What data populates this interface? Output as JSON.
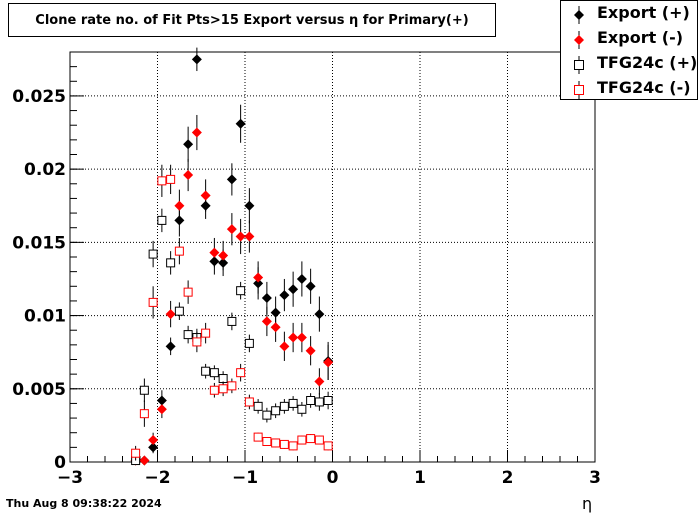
{
  "title": "Clone rate no. of Fit Pts>15 Export versus η for Primary(+)",
  "footer": "Thu Aug  8 09:38:22 2024",
  "chart_data": {
    "type": "scatter",
    "title": "Clone rate no. of Fit Pts>15 Export versus η for Primary(+)",
    "xlabel": "η",
    "ylabel": "",
    "xlim": [
      -3,
      3
    ],
    "ylim": [
      0,
      0.028
    ],
    "grid": true,
    "legend_position": "top-right",
    "x_ticks": [
      "−3",
      "−2",
      "−1",
      "0",
      "1",
      "2",
      "3"
    ],
    "y_ticks": [
      "0",
      "0.005",
      "0.01",
      "0.015",
      "0.02",
      "0.025"
    ],
    "x_tick_values": [
      -3,
      -2,
      -1,
      0,
      1,
      2,
      3
    ],
    "y_tick_values": [
      0,
      0.005,
      0.01,
      0.015,
      0.02,
      0.025
    ],
    "series": [
      {
        "name": "Export (+)",
        "marker": "filled-diamond",
        "color": "#000000",
        "x": [
          -2.25,
          -2.15,
          -2.05,
          -1.95,
          -1.85,
          -1.75,
          -1.65,
          -1.55,
          -1.45,
          -1.35,
          -1.25,
          -1.15,
          -1.05,
          -0.95,
          -0.85,
          -0.75,
          -0.65,
          -0.55,
          -0.45,
          -0.35,
          -0.25,
          -0.15,
          -0.05
        ],
        "y": [
          0.0001,
          0.0001,
          0.001,
          0.0042,
          0.0079,
          0.0165,
          0.0217,
          0.0275,
          0.0175,
          0.0137,
          0.0136,
          0.0193,
          0.0231,
          0.0175,
          0.0122,
          0.0112,
          0.0102,
          0.0114,
          0.0118,
          0.0125,
          0.012,
          0.0101,
          0.0069
        ],
        "err": [
          0.0001,
          0.0001,
          0.0004,
          0.0007,
          0.0006,
          0.0011,
          0.0012,
          0.0008,
          0.0009,
          0.0009,
          0.0009,
          0.0011,
          0.0013,
          0.0012,
          0.0011,
          0.0011,
          0.0011,
          0.0011,
          0.0012,
          0.0012,
          0.0012,
          0.0012,
          0.0013
        ]
      },
      {
        "name": "Export (-)",
        "marker": "filled-diamond",
        "color": "#ff0000",
        "x": [
          -2.25,
          -2.15,
          -2.05,
          -1.95,
          -1.85,
          -1.75,
          -1.65,
          -1.55,
          -1.45,
          -1.35,
          -1.25,
          -1.15,
          -1.05,
          -0.95,
          -0.85,
          -0.75,
          -0.65,
          -0.55,
          -0.45,
          -0.35,
          -0.25,
          -0.15,
          -0.05
        ],
        "y": [
          0.0001,
          0.0001,
          0.0015,
          0.0036,
          0.0101,
          0.0175,
          0.0196,
          0.0225,
          0.0182,
          0.0143,
          0.0141,
          0.0159,
          0.0154,
          0.0154,
          0.0126,
          0.0096,
          0.0092,
          0.0079,
          0.0085,
          0.0085,
          0.0076,
          0.0055,
          0.0068
        ],
        "err": [
          0.0001,
          0.0001,
          0.0005,
          0.0006,
          0.0009,
          0.0011,
          0.0011,
          0.0012,
          0.0011,
          0.001,
          0.001,
          0.0011,
          0.0012,
          0.0011,
          0.0011,
          0.001,
          0.001,
          0.001,
          0.001,
          0.001,
          0.001,
          0.0009,
          0.0012
        ]
      },
      {
        "name": "TFG24c (+)",
        "marker": "open-square",
        "color": "#000000",
        "x": [
          -2.25,
          -2.15,
          -2.05,
          -1.95,
          -1.85,
          -1.75,
          -1.65,
          -1.55,
          -1.45,
          -1.35,
          -1.25,
          -1.15,
          -1.05,
          -0.95,
          -0.85,
          -0.75,
          -0.65,
          -0.55,
          -0.45,
          -0.35,
          -0.25,
          -0.15,
          -0.05
        ],
        "y": [
          0.0001,
          0.0049,
          0.0142,
          0.0165,
          0.0136,
          0.0103,
          0.0087,
          0.0085,
          0.0062,
          0.0061,
          0.0057,
          0.0096,
          0.0117,
          0.0081,
          0.0038,
          0.0032,
          0.0035,
          0.0038,
          0.004,
          0.0036,
          0.0042,
          0.0041,
          0.0042
        ],
        "err": [
          0.0001,
          0.0008,
          0.0009,
          0.0008,
          0.0008,
          0.0006,
          0.0006,
          0.0006,
          0.0005,
          0.0005,
          0.0005,
          0.0006,
          0.0006,
          0.0006,
          0.0005,
          0.0005,
          0.0005,
          0.0005,
          0.0005,
          0.0005,
          0.0005,
          0.0006,
          0.0006
        ]
      },
      {
        "name": "TFG24c (-)",
        "marker": "open-square",
        "color": "#ff0000",
        "x": [
          -2.25,
          -2.15,
          -2.05,
          -1.95,
          -1.85,
          -1.75,
          -1.65,
          -1.55,
          -1.45,
          -1.35,
          -1.25,
          -1.15,
          -1.05,
          -0.95,
          -0.85,
          -0.75,
          -0.65,
          -0.55,
          -0.45,
          -0.35,
          -0.25,
          -0.15,
          -0.05
        ],
        "y": [
          0.0006,
          0.0033,
          0.0109,
          0.0192,
          0.0193,
          0.0144,
          0.0116,
          0.0082,
          0.0088,
          0.0049,
          0.005,
          0.0052,
          0.0061,
          0.0041,
          0.0017,
          0.0014,
          0.0013,
          0.0012,
          0.0011,
          0.0015,
          0.0016,
          0.0015,
          0.0011
        ],
        "err": [
          0.0005,
          0.0009,
          0.0011,
          0.0011,
          0.001,
          0.0009,
          0.0008,
          0.0007,
          0.0007,
          0.0005,
          0.0005,
          0.0005,
          0.0006,
          0.0005,
          0.0003,
          0.0003,
          0.0003,
          0.0003,
          0.0003,
          0.0003,
          0.0003,
          0.0003,
          0.0003
        ]
      }
    ]
  }
}
